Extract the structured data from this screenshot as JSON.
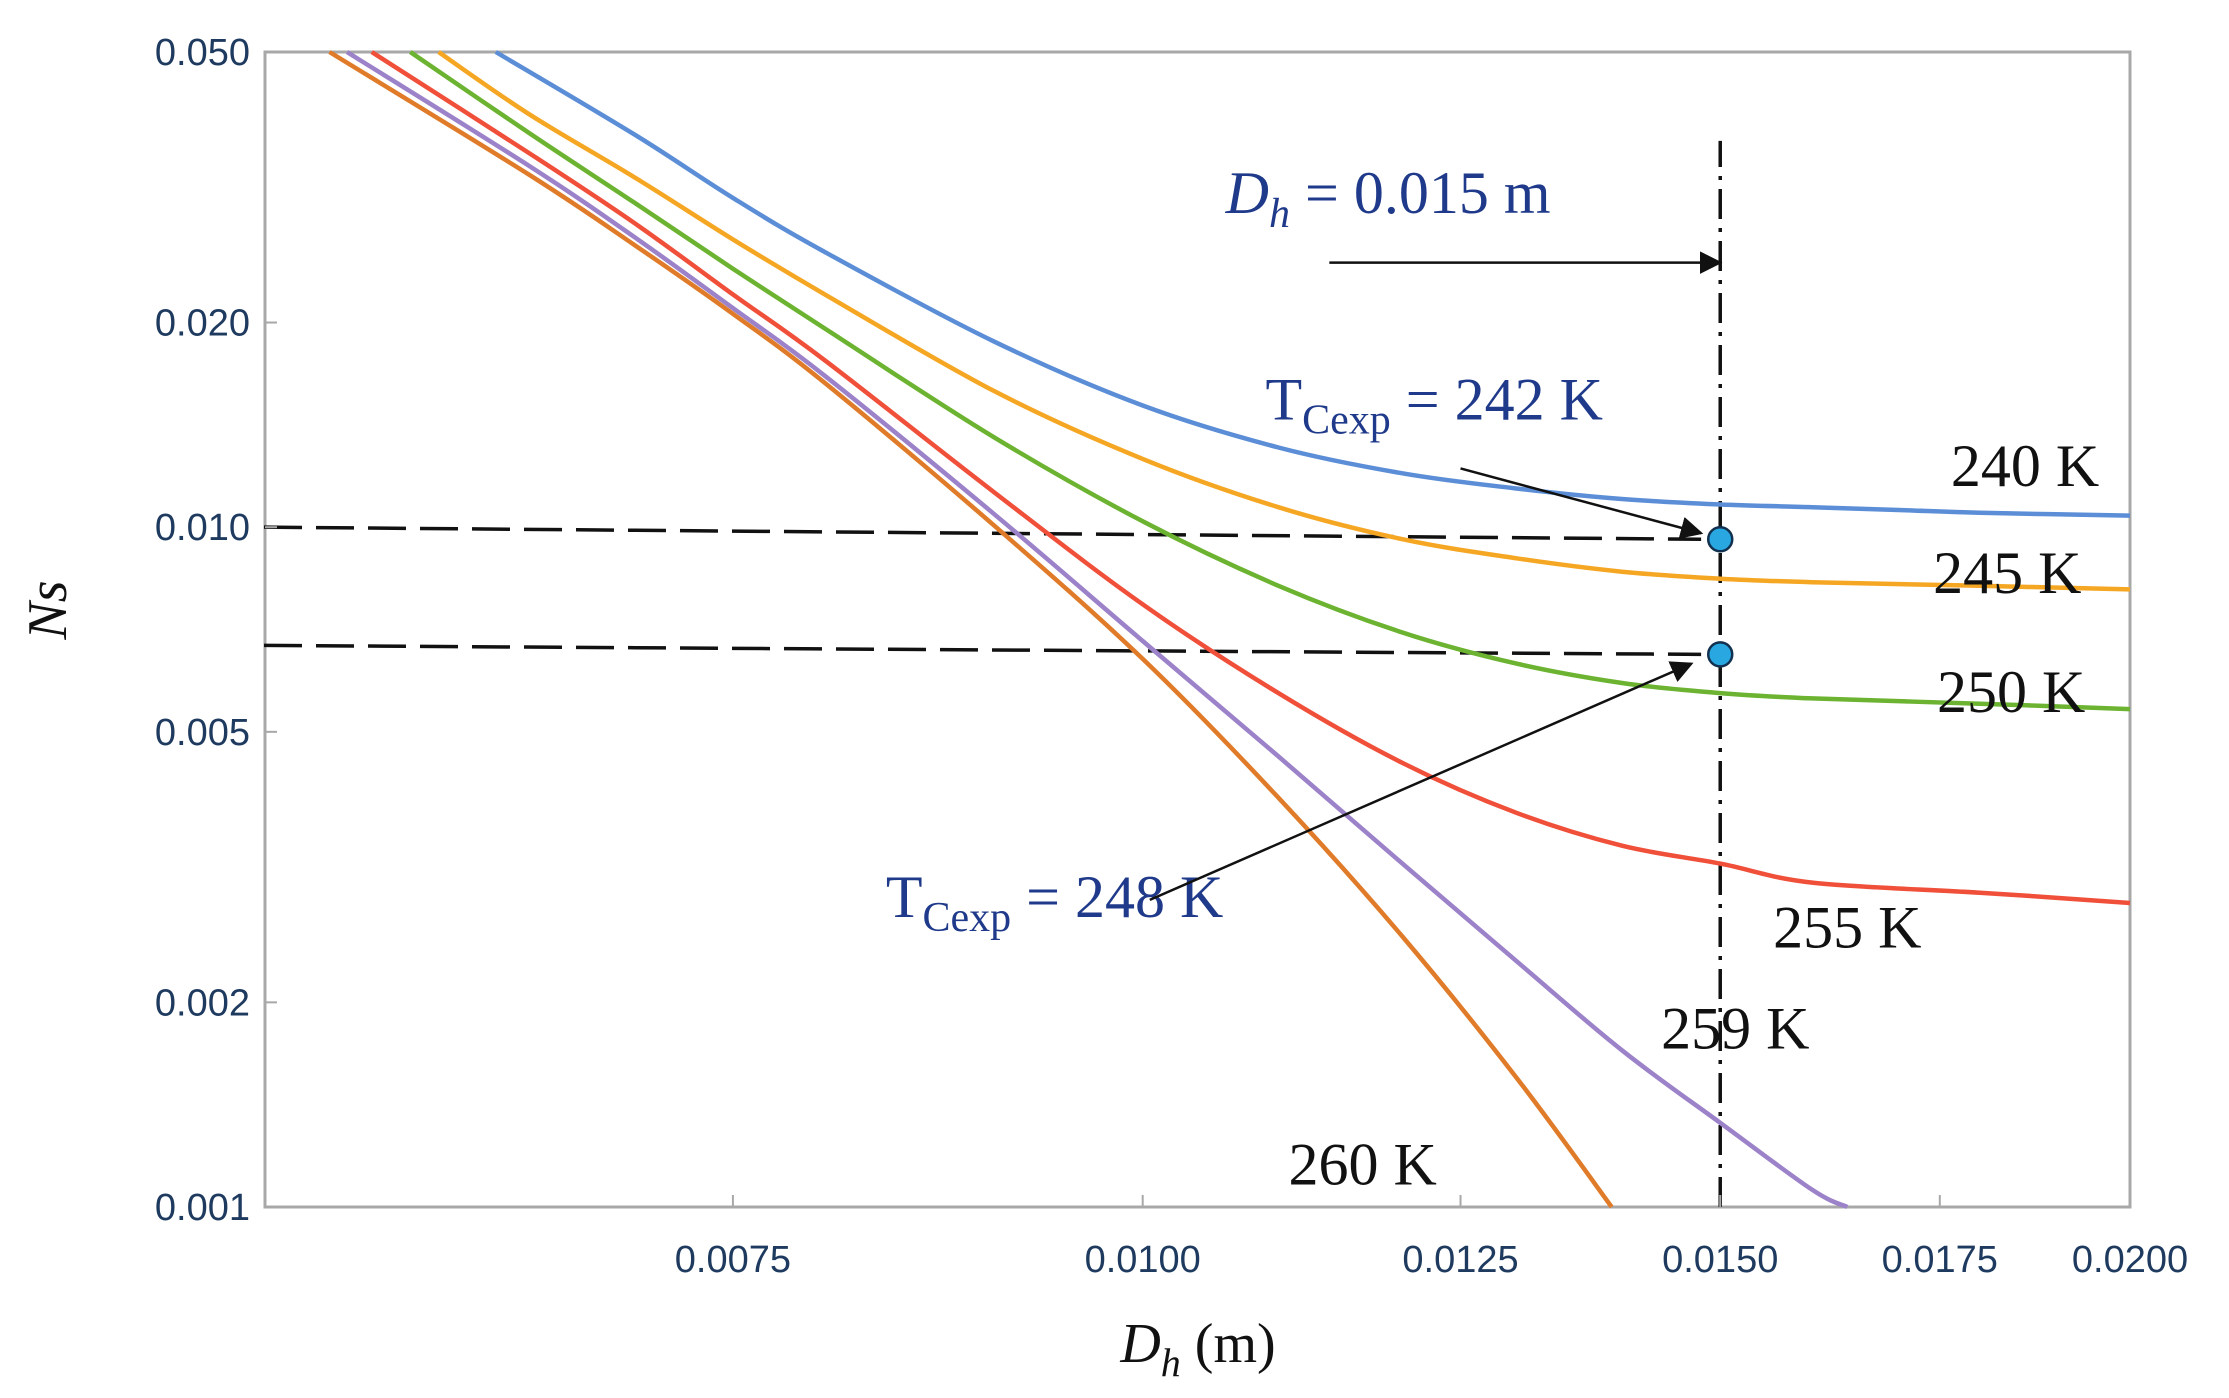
{
  "chart_data": {
    "type": "line",
    "xlabel": {
      "main": "D",
      "sub": "h",
      "rest": " (m)"
    },
    "ylabel": "Ns",
    "xscale": "log",
    "yscale": "log",
    "xlim": [
      0.0054,
      0.02
    ],
    "ylim": [
      0.001,
      0.05
    ],
    "xticks": [
      {
        "value": 0.0075,
        "label": "0.0075"
      },
      {
        "value": 0.01,
        "label": "0.0100"
      },
      {
        "value": 0.0125,
        "label": "0.0125"
      },
      {
        "value": 0.015,
        "label": "0.0150"
      },
      {
        "value": 0.0175,
        "label": "0.0175"
      },
      {
        "value": 0.02,
        "label": "0.0200"
      }
    ],
    "yticks": [
      {
        "value": 0.05,
        "label": "0.050"
      },
      {
        "value": 0.02,
        "label": "0.020"
      },
      {
        "value": 0.01,
        "label": "0.010"
      },
      {
        "value": 0.005,
        "label": "0.005"
      },
      {
        "value": 0.002,
        "label": "0.002"
      },
      {
        "value": 0.001,
        "label": "0.001"
      }
    ],
    "grid": false,
    "series": [
      {
        "name": "240 K",
        "color": "#5b8ed6",
        "x": [
          0.00635,
          0.007,
          0.0075,
          0.008,
          0.009,
          0.01,
          0.011,
          0.012,
          0.013,
          0.014,
          0.015,
          0.016,
          0.017,
          0.018,
          0.02
        ],
        "y": [
          0.05,
          0.0378,
          0.0305,
          0.0254,
          0.0188,
          0.0151,
          0.0131,
          0.012,
          0.0114,
          0.011,
          0.0108,
          0.0107,
          0.0106,
          0.0105,
          0.0104
        ]
      },
      {
        "name": "245 K",
        "color": "#f5a623",
        "x": [
          0.0061,
          0.0065,
          0.007,
          0.0075,
          0.008,
          0.009,
          0.01,
          0.011,
          0.012,
          0.013,
          0.014,
          0.015,
          0.016,
          0.018,
          0.02
        ],
        "y": [
          0.05,
          0.0405,
          0.0327,
          0.0265,
          0.022,
          0.0159,
          0.0126,
          0.0107,
          0.0096,
          0.009,
          0.0086,
          0.0084,
          0.0083,
          0.0082,
          0.0081
        ]
      },
      {
        "name": "250 K",
        "color": "#6bb330",
        "x": [
          0.00598,
          0.0065,
          0.007,
          0.0075,
          0.008,
          0.009,
          0.01,
          0.011,
          0.012,
          0.013,
          0.014,
          0.015,
          0.016,
          0.018,
          0.02
        ],
        "y": [
          0.05,
          0.038,
          0.03,
          0.024,
          0.0196,
          0.0136,
          0.0102,
          0.0082,
          0.007,
          0.0063,
          0.0059,
          0.0057,
          0.0056,
          0.0055,
          0.0054
        ]
      },
      {
        "name": "255 K",
        "color": "#f0503a",
        "x": [
          0.00582,
          0.0065,
          0.007,
          0.0075,
          0.008,
          0.009,
          0.01,
          0.011,
          0.012,
          0.013,
          0.014,
          0.015,
          0.016,
          0.018,
          0.02
        ],
        "y": [
          0.05,
          0.0355,
          0.028,
          0.022,
          0.0176,
          0.0113,
          0.0077,
          0.0057,
          0.0045,
          0.0038,
          0.0034,
          0.0032,
          0.003,
          0.0029,
          0.0028
        ]
      },
      {
        "name": "259 K",
        "color": "#9b82c9",
        "x": [
          0.00572,
          0.0065,
          0.007,
          0.0075,
          0.008,
          0.009,
          0.01,
          0.011,
          0.012,
          0.013,
          0.014,
          0.015,
          0.016,
          0.0164
        ],
        "y": [
          0.05,
          0.034,
          0.0267,
          0.021,
          0.0167,
          0.0105,
          0.0068,
          0.0046,
          0.0032,
          0.0023,
          0.0017,
          0.00133,
          0.00106,
          0.001
        ]
      },
      {
        "name": "260 K",
        "color": "#e07b2a",
        "x": [
          0.00565,
          0.0065,
          0.007,
          0.0075,
          0.008,
          0.009,
          0.01,
          0.011,
          0.012,
          0.013,
          0.0139
        ],
        "y": [
          0.05,
          0.033,
          0.026,
          0.0206,
          0.0163,
          0.0101,
          0.0064,
          0.004,
          0.0025,
          0.00155,
          0.001
        ]
      }
    ],
    "curve_labels": [
      {
        "text": "240 K",
        "x": 0.01858,
        "y": 0.0115
      },
      {
        "text": "245 K",
        "x": 0.01835,
        "y": 0.008
      },
      {
        "text": "250 K",
        "x": 0.0184,
        "y": 0.00535
      },
      {
        "text": "255 K",
        "x": 0.0164,
        "y": 0.00241
      },
      {
        "text": "259 K",
        "x": 0.01516,
        "y": 0.00171
      },
      {
        "text": "260 K",
        "x": 0.01167,
        "y": 0.00108
      }
    ],
    "reference_lines": [
      {
        "orientation": "vertical",
        "x": 0.015,
        "y_from": 0.001,
        "y_to": 0.037
      },
      {
        "orientation": "horizontal",
        "y_left": 0.01,
        "y_right": 0.0096,
        "x_to": 0.0148
      },
      {
        "orientation": "horizontal",
        "y_left": 0.0067,
        "y_right": 0.0065,
        "x_to": 0.0148
      }
    ],
    "points": [
      {
        "x": 0.015,
        "y": 0.0096,
        "color": "#29a7e1"
      },
      {
        "x": 0.015,
        "y": 0.0065,
        "color": "#29a7e1"
      }
    ],
    "annotations": [
      {
        "id": "dh",
        "main": "D",
        "sub": "h",
        "rest": " = 0.015 m",
        "text_x": 0.0106,
        "text_y": 0.029,
        "arrow_from": [
          0.0114,
          0.0245
        ],
        "arrow_to": [
          0.015,
          0.0245
        ]
      },
      {
        "id": "tc242",
        "main": "T",
        "sub": "Cexp",
        "rest": " = 242 K",
        "text_x": 0.0109,
        "text_y": 0.0144,
        "arrow_from": [
          0.0125,
          0.0122
        ],
        "arrow_to": [
          0.0148,
          0.0098
        ]
      },
      {
        "id": "tc248",
        "main": "T",
        "sub": "Cexp",
        "rest": " = 248 K",
        "text_x": 0.00835,
        "text_y": 0.00267,
        "arrow_from": [
          0.01005,
          0.00283
        ],
        "arrow_to": [
          0.0147,
          0.0063
        ]
      }
    ]
  }
}
